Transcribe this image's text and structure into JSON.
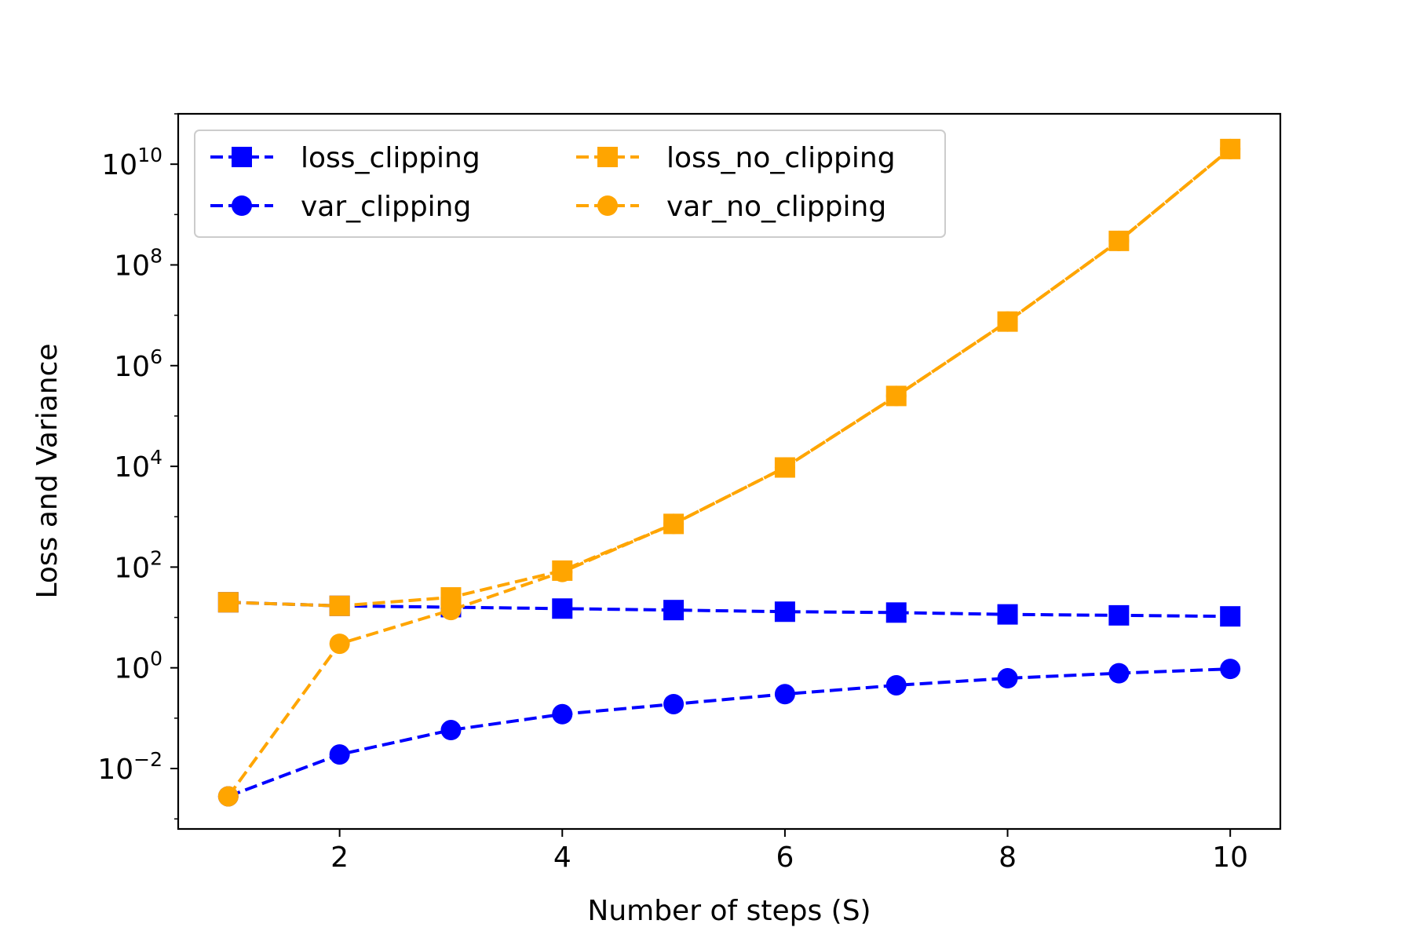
{
  "chart_data": {
    "type": "line",
    "title": "",
    "xlabel": "Number of steps (S)",
    "ylabel": "Loss and Variance",
    "yscale": "log",
    "xlim": [
      0.55,
      10.45
    ],
    "ylim_log10": [
      -3.2,
      11.0
    ],
    "grid": false,
    "legend_position": "top-left",
    "legend_columns": 2,
    "x_ticks": [
      2,
      4,
      6,
      8,
      10
    ],
    "y_ticks_exponents": [
      -2,
      0,
      2,
      4,
      6,
      8,
      10
    ],
    "x": [
      1,
      2,
      3,
      4,
      5,
      6,
      7,
      8,
      9,
      10
    ],
    "series": [
      {
        "name": "loss_clipping",
        "color": "#0000ff",
        "marker": "square",
        "linestyle": "dashed",
        "values": [
          20,
          17,
          16,
          15,
          14,
          13,
          12.5,
          11.5,
          11,
          10.5
        ]
      },
      {
        "name": "var_clipping",
        "color": "#0000ff",
        "marker": "circle",
        "linestyle": "dashed",
        "values": [
          0.0028,
          0.019,
          0.058,
          0.12,
          0.19,
          0.3,
          0.45,
          0.62,
          0.78,
          0.95
        ]
      },
      {
        "name": "loss_no_clipping",
        "color": "#ffa500",
        "marker": "square",
        "linestyle": "dashed",
        "values": [
          20,
          17,
          25,
          85,
          720,
          9500,
          250000,
          7500000,
          300000000,
          20000000000
        ]
      },
      {
        "name": "var_no_clipping",
        "color": "#ffa500",
        "marker": "circle",
        "linestyle": "dashed",
        "values": [
          0.0028,
          3,
          14,
          80,
          720,
          9500,
          250000,
          7500000,
          300000000,
          20000000000
        ]
      }
    ]
  }
}
